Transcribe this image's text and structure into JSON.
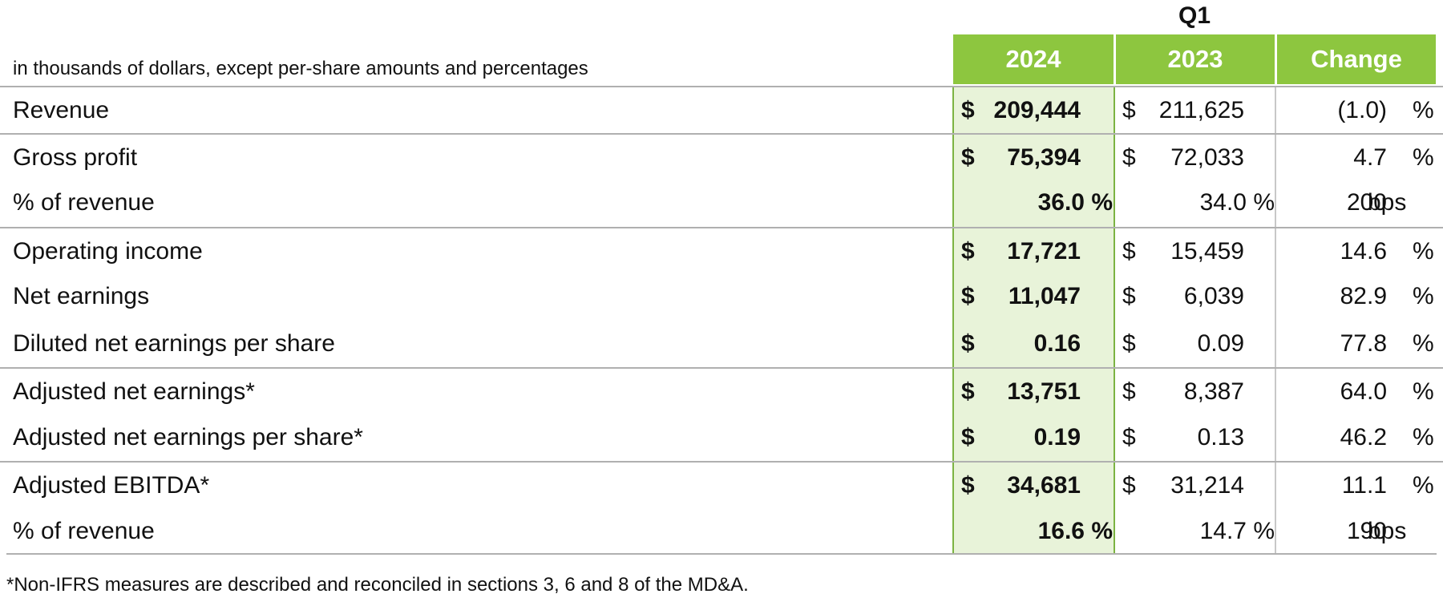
{
  "header": {
    "period": "Q1",
    "unit_note": "in thousands of dollars, except per-share amounts and percentages",
    "columns": [
      "2024",
      "2023",
      "Change"
    ]
  },
  "rows": [
    {
      "label": "Revenue",
      "cur_2024": "$",
      "val_2024": "209,444",
      "cur_2023": "$",
      "val_2023": "211,625",
      "change": "(1.0)",
      "change_unit": "%"
    },
    {
      "label": "Gross profit",
      "cur_2024": "$",
      "val_2024": "75,394",
      "cur_2023": "$",
      "val_2023": "72,033",
      "change": "4.7",
      "change_unit": "%"
    },
    {
      "label": "% of revenue",
      "val_2024": "36.0 %",
      "val_2023": "34.0 %",
      "change": "200",
      "change_unit": "bps"
    },
    {
      "label": "Operating income",
      "cur_2024": "$",
      "val_2024": "17,721",
      "cur_2023": "$",
      "val_2023": "15,459",
      "change": "14.6",
      "change_unit": "%"
    },
    {
      "label": "Net earnings",
      "cur_2024": "$",
      "val_2024": "11,047",
      "cur_2023": "$",
      "val_2023": "6,039",
      "change": "82.9",
      "change_unit": "%"
    },
    {
      "label": "Diluted net earnings per share",
      "cur_2024": "$",
      "val_2024": "0.16",
      "cur_2023": "$",
      "val_2023": "0.09",
      "change": "77.8",
      "change_unit": "%"
    },
    {
      "label": "Adjusted net earnings*",
      "cur_2024": "$",
      "val_2024": "13,751",
      "cur_2023": "$",
      "val_2023": "8,387",
      "change": "64.0",
      "change_unit": "%"
    },
    {
      "label": "Adjusted net earnings per share*",
      "cur_2024": "$",
      "val_2024": "0.19",
      "cur_2023": "$",
      "val_2023": "0.13",
      "change": "46.2",
      "change_unit": "%"
    },
    {
      "label": "Adjusted EBITDA*",
      "cur_2024": "$",
      "val_2024": "34,681",
      "cur_2023": "$",
      "val_2023": "31,214",
      "change": "11.1",
      "change_unit": "%"
    },
    {
      "label": "% of revenue",
      "val_2024": "16.6 %",
      "val_2023": "14.7 %",
      "change": "190",
      "change_unit": "bps"
    }
  ],
  "footnote": "*Non-IFRS measures are described and reconciled in sections 3, 6 and 8 of the MD&A."
}
